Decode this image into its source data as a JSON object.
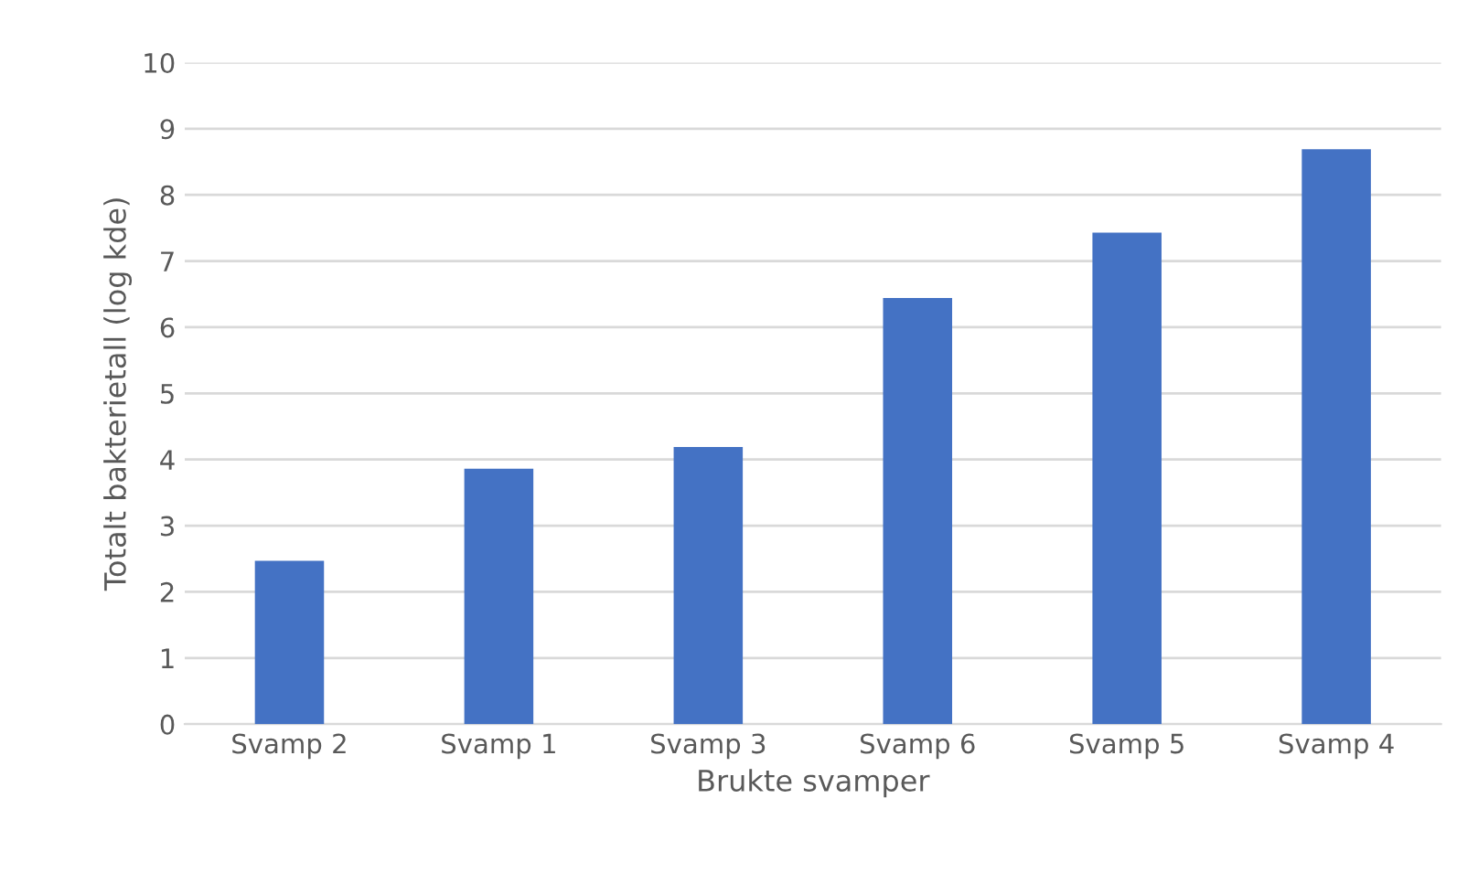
{
  "chart_data": {
    "type": "bar",
    "xlabel": "Brukte svamper",
    "ylabel": "Totalt bakterietall (log kde)",
    "categories": [
      "Svamp 2",
      "Svamp 1",
      "Svamp 3",
      "Svamp 6",
      "Svamp 5",
      "Svamp 4"
    ],
    "values": [
      2.47,
      3.86,
      4.19,
      6.44,
      7.43,
      8.69
    ],
    "color": "#4472c4",
    "ylim": [
      0,
      10
    ],
    "yticks": [
      0,
      1,
      2,
      3,
      4,
      5,
      6,
      7,
      8,
      9,
      10
    ],
    "grid": "y",
    "legend": false
  }
}
